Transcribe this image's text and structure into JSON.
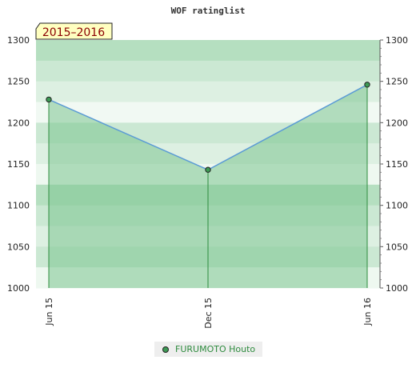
{
  "chart_data": {
    "type": "line",
    "title": "WOF ratinglist",
    "period_label": "2015–2016",
    "x": [
      "Jun 15",
      "Dec 15",
      "Jun 16"
    ],
    "series": [
      {
        "name": "FURUMOTO Houto",
        "values": [
          1228,
          1143,
          1246
        ]
      }
    ],
    "ylim": [
      1000,
      1300
    ],
    "yticks": [
      1000,
      1050,
      1100,
      1150,
      1200,
      1250,
      1300
    ],
    "grid": true,
    "legend_position": "bottom-center",
    "colors": {
      "line": "#5b9bd5",
      "fill": "#7cc48f",
      "marker": "#3d9a55",
      "badge_bg": "#ffffc0",
      "badge_text": "#8b0000"
    }
  }
}
